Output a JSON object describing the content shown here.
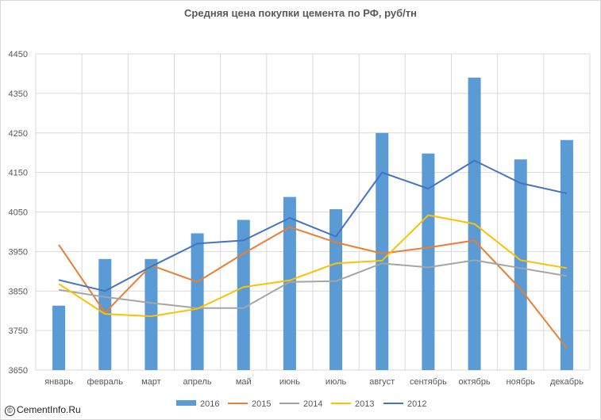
{
  "chart_data": {
    "type": "bar",
    "title": "Средняя цена покупки цемента по РФ, руб/тн",
    "xlabel": "",
    "ylabel": "",
    "ylim": [
      3650,
      4450
    ],
    "yticks": [
      3650,
      3750,
      3850,
      3950,
      4050,
      4150,
      4250,
      4350,
      4450
    ],
    "grid": true,
    "legend_position": "bottom",
    "categories": [
      "январь",
      "февраль",
      "март",
      "апрель",
      "май",
      "июнь",
      "июль",
      "август",
      "сентябрь",
      "октябрь",
      "ноябрь",
      "декабрь"
    ],
    "series": [
      {
        "name": "2016",
        "kind": "bar",
        "color": "#5b9bd5",
        "values": [
          3813,
          3931,
          3931,
          3996,
          4030,
          4088,
          4057,
          4250,
          4198,
          4390,
          4183,
          4232
        ]
      },
      {
        "name": "2015",
        "kind": "line",
        "color": "#ed7d31",
        "values": [
          3967,
          3795,
          3915,
          3873,
          3945,
          4012,
          3973,
          3945,
          3960,
          3978,
          3855,
          3705
        ]
      },
      {
        "name": "2014",
        "kind": "line",
        "color": "#a5a5a5",
        "values": [
          3853,
          3835,
          3820,
          3807,
          3807,
          3873,
          3875,
          3920,
          3910,
          3928,
          3908,
          3888
        ]
      },
      {
        "name": "2013",
        "kind": "line",
        "color": "#ffc000",
        "values": [
          3868,
          3792,
          3786,
          3805,
          3860,
          3877,
          3920,
          3927,
          4042,
          4020,
          3928,
          3908
        ]
      },
      {
        "name": "2012",
        "kind": "line",
        "color": "#4472c4",
        "values": [
          3878,
          3850,
          3912,
          3970,
          3978,
          4035,
          3988,
          4150,
          4109,
          4180,
          4123,
          4097
        ]
      }
    ]
  },
  "watermark": {
    "symbol": "©",
    "text": "CementInfo.Ru"
  }
}
